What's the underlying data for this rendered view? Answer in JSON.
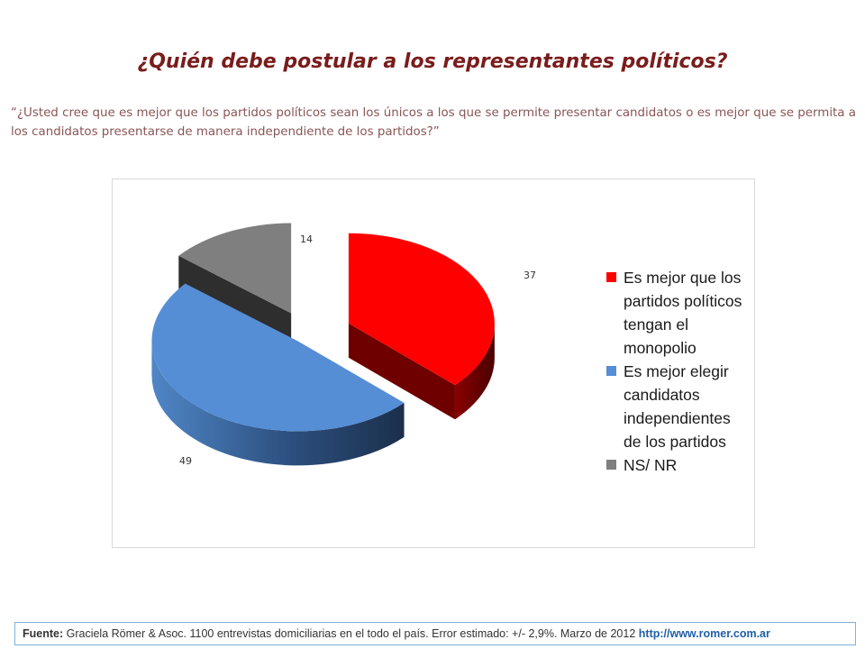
{
  "header": {
    "title": "¿Quién debe postular a los representantes políticos?",
    "question": "“¿Usted cree que es mejor que los partidos políticos sean los únicos a los que se permite presentar candidatos o es mejor que se permita a los candidatos presentarse de manera independiente de los partidos?”"
  },
  "chart_data": {
    "type": "pie",
    "style": "3d-exploded",
    "title": "",
    "legend_position": "right",
    "slices": [
      {
        "label": "Es mejor que los partidos políticos tengan el monopolio",
        "value": 37,
        "color": "#ff0000",
        "side_color": "#6e0000"
      },
      {
        "label": "Es mejor elegir candidatos independientes de los partidos",
        "value": 49,
        "color": "#558ed5",
        "side_color": "#1f3a5f"
      },
      {
        "label": "NS/ NR",
        "value": 14,
        "color": "#7f7f7f",
        "side_color": "#2e2e2e"
      }
    ]
  },
  "footer": {
    "source_label": "Fuente:",
    "source_text": " Graciela Römer & Asoc. 1100 entrevistas domiciliarias en el todo el país. Error estimado: +/- 2,9%. Marzo de 2012 ",
    "source_url": "http://www.romer.com.ar"
  }
}
